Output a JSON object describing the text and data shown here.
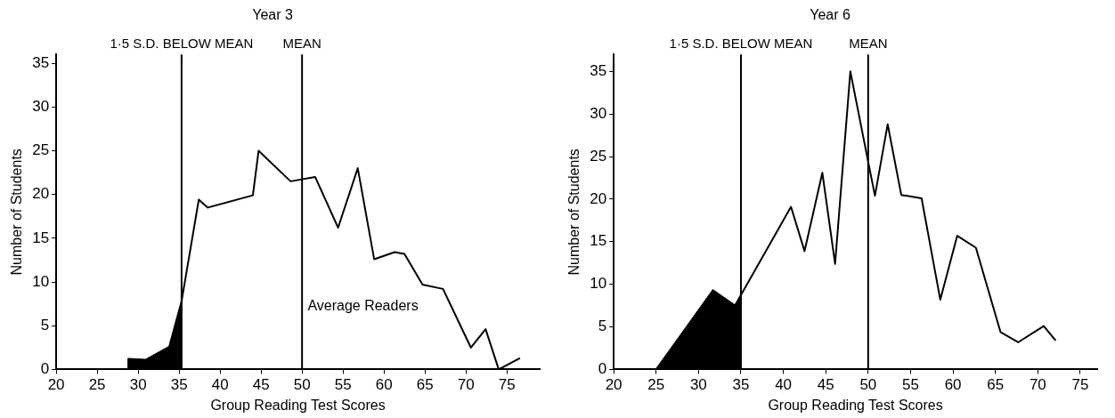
{
  "chart_data": [
    {
      "type": "line",
      "title": "Year 3",
      "xlabel": "Group Reading Test Scores",
      "ylabel": "Number of Students",
      "xlim": [
        20,
        79
      ],
      "xticks": [
        20,
        25,
        30,
        35,
        40,
        45,
        50,
        55,
        60,
        65,
        70,
        75
      ],
      "ylim": [
        0,
        36
      ],
      "yticks": [
        0,
        5,
        10,
        15,
        20,
        25,
        30,
        35
      ],
      "grid": false,
      "legend": false,
      "series": [
        {
          "type": "line",
          "color": "#000000",
          "x": [
            20,
            28.8,
            28.8,
            30.9,
            33.8,
            35.3,
            37.4,
            38.5,
            44,
            44.7,
            48.6,
            51.6,
            54.4,
            56.8,
            58.8,
            61.3,
            62.5,
            64.7,
            67.2,
            70.6,
            72.4,
            74,
            76.6
          ],
          "values": [
            0,
            0,
            1.2,
            1.1,
            2.6,
            7.8,
            19.4,
            18.5,
            19.9,
            25,
            21.5,
            22,
            16.2,
            23,
            12.6,
            13.4,
            13.2,
            9.7,
            9.2,
            2.5,
            4.6,
            0,
            1.3
          ]
        },
        {
          "type": "area",
          "color": "#000000",
          "x": [
            28.8,
            30.9,
            33.8,
            35.3
          ],
          "values": [
            1.2,
            1.1,
            2.6,
            7.8
          ]
        }
      ],
      "ref_lines": [
        {
          "axis": "x",
          "value": 35.3,
          "label": "1·5 S.D. BELOW MEAN"
        },
        {
          "axis": "x",
          "value": 50,
          "label": "MEAN"
        }
      ],
      "annotations": [
        "Average Readers"
      ]
    },
    {
      "type": "line",
      "title": "Year 6",
      "xlabel": "Group Reading Test Scores",
      "ylabel": "Number of Students",
      "xlim": [
        20,
        77
      ],
      "xticks": [
        20,
        25,
        30,
        35,
        40,
        45,
        50,
        55,
        60,
        65,
        70,
        75
      ],
      "ylim": [
        0,
        37
      ],
      "yticks": [
        0,
        5,
        10,
        15,
        20,
        25,
        30,
        35
      ],
      "grid": false,
      "legend": false,
      "series": [
        {
          "type": "line",
          "color": "#000000",
          "x": [
            20,
            25,
            31.7,
            34.3,
            40.9,
            42.5,
            44.6,
            46.1,
            47.9,
            50,
            50.8,
            52.3,
            53.9,
            56.3,
            58.5,
            60.5,
            62.7,
            65.6,
            67.7,
            70.7,
            72.1
          ],
          "values": [
            0,
            0,
            9.3,
            7.5,
            19.1,
            13.9,
            23.1,
            12.4,
            35,
            24.4,
            20.4,
            28.8,
            20.5,
            20.1,
            8.2,
            15.7,
            14.3,
            4.4,
            3.2,
            5.1,
            3.4
          ]
        },
        {
          "type": "area",
          "color": "#000000",
          "x": [
            25,
            31.7,
            34.3,
            35
          ],
          "values": [
            0,
            9.3,
            7.5,
            8.7
          ]
        }
      ],
      "ref_lines": [
        {
          "axis": "x",
          "value": 35,
          "label": "1·5 S.D. BELOW MEAN"
        },
        {
          "axis": "x",
          "value": 50,
          "label": "MEAN"
        }
      ]
    }
  ]
}
